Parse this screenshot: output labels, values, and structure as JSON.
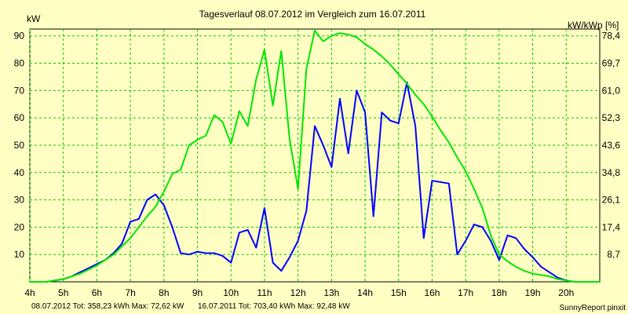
{
  "chart_data": {
    "type": "line",
    "title": "Tagesverlauf 08.07.2012 im Vergleich zum 16.07.2011",
    "ylabel_left": "kW",
    "ylabel_right": "kW/kWp [%]",
    "xlabel": "",
    "xlim": [
      4,
      21
    ],
    "ylim": [
      0,
      92.5
    ],
    "x_tick_values": [
      4,
      5,
      6,
      7,
      8,
      9,
      10,
      11,
      12,
      13,
      14,
      15,
      16,
      17,
      18,
      19,
      20
    ],
    "x_ticks": [
      "4h",
      "5h",
      "6h",
      "7h",
      "8h",
      "9h",
      "10h",
      "11h",
      "12h",
      "13h",
      "14h",
      "15h",
      "16h",
      "17h",
      "18h",
      "19h",
      "20h"
    ],
    "y_tick_values": [
      10,
      20,
      30,
      40,
      50,
      60,
      70,
      80,
      90
    ],
    "y_ticks_left": [
      "10",
      "20",
      "30",
      "40",
      "50",
      "60",
      "70",
      "80",
      "90"
    ],
    "y_ticks_right": [
      "8,7",
      "17,4",
      "26,1",
      "34,8",
      "43,6",
      "52,3",
      "61,0",
      "69,7",
      "78,4"
    ],
    "grid": true,
    "background": "#ffffc4",
    "grid_color": "#00c800",
    "series": [
      {
        "name": "08.07.2012",
        "color": "#0000ff",
        "points": [
          [
            4.0,
            0.0
          ],
          [
            4.25,
            0.0
          ],
          [
            4.5,
            0.0
          ],
          [
            4.75,
            0.5
          ],
          [
            5.0,
            1.0
          ],
          [
            5.25,
            2.0
          ],
          [
            5.5,
            3.5
          ],
          [
            5.75,
            5.0
          ],
          [
            6.0,
            6.5
          ],
          [
            6.25,
            8.0
          ],
          [
            6.5,
            10.5
          ],
          [
            6.75,
            14.0
          ],
          [
            7.0,
            22.0
          ],
          [
            7.25,
            23.0
          ],
          [
            7.5,
            30.0
          ],
          [
            7.75,
            32.0
          ],
          [
            8.0,
            28.0
          ],
          [
            8.25,
            20.0
          ],
          [
            8.5,
            10.5
          ],
          [
            8.75,
            10.0
          ],
          [
            9.0,
            11.0
          ],
          [
            9.25,
            10.5
          ],
          [
            9.5,
            10.5
          ],
          [
            9.75,
            9.5
          ],
          [
            10.0,
            7.0
          ],
          [
            10.25,
            18.0
          ],
          [
            10.5,
            19.0
          ],
          [
            10.75,
            12.5
          ],
          [
            11.0,
            27.0
          ],
          [
            11.25,
            7.0
          ],
          [
            11.5,
            4.0
          ],
          [
            11.75,
            9.0
          ],
          [
            12.0,
            15.0
          ],
          [
            12.25,
            26.0
          ],
          [
            12.5,
            57.0
          ],
          [
            12.75,
            50.0
          ],
          [
            13.0,
            42.0
          ],
          [
            13.25,
            67.0
          ],
          [
            13.5,
            47.0
          ],
          [
            13.75,
            70.0
          ],
          [
            14.0,
            62.0
          ],
          [
            14.25,
            24.0
          ],
          [
            14.5,
            62.0
          ],
          [
            14.75,
            59.0
          ],
          [
            15.0,
            58.0
          ],
          [
            15.25,
            73.0
          ],
          [
            15.5,
            57.0
          ],
          [
            15.75,
            16.0
          ],
          [
            16.0,
            37.0
          ],
          [
            16.25,
            36.5
          ],
          [
            16.5,
            36.0
          ],
          [
            16.75,
            10.0
          ],
          [
            17.0,
            15.0
          ],
          [
            17.25,
            21.0
          ],
          [
            17.5,
            20.0
          ],
          [
            17.75,
            15.0
          ],
          [
            18.0,
            8.0
          ],
          [
            18.25,
            17.0
          ],
          [
            18.5,
            16.0
          ],
          [
            18.75,
            12.0
          ],
          [
            19.0,
            9.0
          ],
          [
            19.25,
            5.5
          ],
          [
            19.5,
            3.5
          ],
          [
            19.75,
            1.5
          ],
          [
            20.0,
            0.5
          ],
          [
            20.25,
            0.0
          ],
          [
            20.5,
            0.0
          ],
          [
            20.75,
            0.0
          ],
          [
            21.0,
            0.0
          ]
        ]
      },
      {
        "name": "16.07.2011",
        "color": "#00e600",
        "points": [
          [
            4.0,
            0.0
          ],
          [
            4.25,
            0.0
          ],
          [
            4.5,
            0.0
          ],
          [
            4.75,
            0.5
          ],
          [
            5.0,
            1.0
          ],
          [
            5.25,
            2.0
          ],
          [
            5.5,
            3.0
          ],
          [
            5.75,
            4.5
          ],
          [
            6.0,
            6.0
          ],
          [
            6.25,
            8.0
          ],
          [
            6.5,
            10.0
          ],
          [
            6.75,
            13.0
          ],
          [
            7.0,
            16.0
          ],
          [
            7.25,
            20.0
          ],
          [
            7.5,
            24.0
          ],
          [
            7.75,
            27.5
          ],
          [
            8.0,
            33.0
          ],
          [
            8.25,
            39.5
          ],
          [
            8.5,
            41.0
          ],
          [
            8.75,
            50.0
          ],
          [
            9.0,
            52.0
          ],
          [
            9.25,
            53.5
          ],
          [
            9.5,
            61.0
          ],
          [
            9.75,
            58.5
          ],
          [
            10.0,
            50.5
          ],
          [
            10.25,
            62.5
          ],
          [
            10.5,
            57.0
          ],
          [
            10.75,
            74.0
          ],
          [
            11.0,
            85.0
          ],
          [
            11.25,
            64.5
          ],
          [
            11.5,
            84.5
          ],
          [
            11.75,
            52.0
          ],
          [
            12.0,
            34.0
          ],
          [
            12.25,
            78.0
          ],
          [
            12.5,
            92.0
          ],
          [
            12.75,
            88.0
          ],
          [
            13.0,
            90.0
          ],
          [
            13.25,
            91.0
          ],
          [
            13.5,
            90.5
          ],
          [
            13.75,
            89.5
          ],
          [
            14.0,
            87.0
          ],
          [
            14.25,
            85.0
          ],
          [
            14.5,
            82.5
          ],
          [
            14.75,
            79.5
          ],
          [
            15.0,
            76.0
          ],
          [
            15.25,
            72.5
          ],
          [
            15.5,
            68.5
          ],
          [
            15.75,
            65.0
          ],
          [
            16.0,
            60.5
          ],
          [
            16.25,
            55.5
          ],
          [
            16.5,
            51.0
          ],
          [
            16.75,
            45.5
          ],
          [
            17.0,
            40.5
          ],
          [
            17.25,
            34.0
          ],
          [
            17.5,
            27.0
          ],
          [
            17.75,
            17.0
          ],
          [
            18.0,
            10.0
          ],
          [
            18.25,
            7.5
          ],
          [
            18.5,
            5.5
          ],
          [
            18.75,
            4.0
          ],
          [
            19.0,
            3.0
          ],
          [
            19.25,
            2.5
          ],
          [
            19.5,
            2.0
          ],
          [
            19.75,
            1.0
          ],
          [
            20.0,
            0.5
          ],
          [
            20.25,
            0.0
          ],
          [
            20.5,
            0.0
          ],
          [
            20.75,
            0.0
          ],
          [
            21.0,
            0.0
          ]
        ]
      }
    ],
    "footer": {
      "series1_text": "08.07.2012 Tot: 358,23 kWh Max: 72,62 kW",
      "series2_text": "16.07.2011 Tot: 703,40 kWh Max: 92,48 kW"
    },
    "credit": "SunnyReport pinxit"
  }
}
